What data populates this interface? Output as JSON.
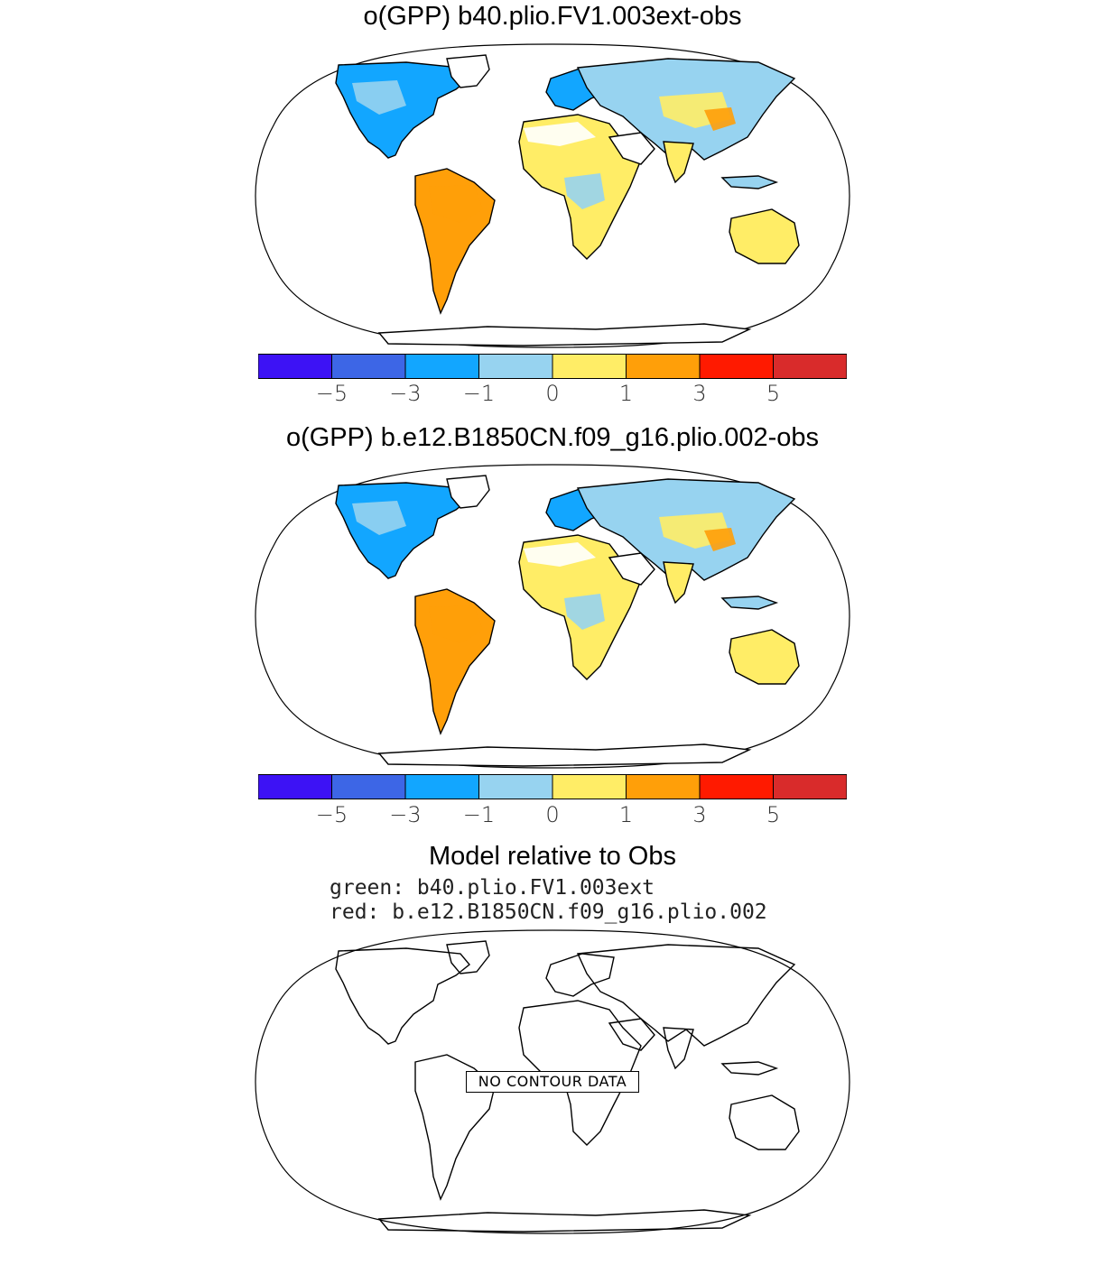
{
  "panels": [
    {
      "title": "o(GPP) b40.plio.FV1.003ext-obs"
    },
    {
      "title": "o(GPP) b.e12.B1850CN.f09_g16.plio.002-obs"
    }
  ],
  "colorbar": {
    "colors": [
      "#3d12f5",
      "#3d66e6",
      "#12a6ff",
      "#97d3f0",
      "#ffed66",
      "#ff9f09",
      "#ff1a00",
      "#d92b2b"
    ],
    "labels": [
      "−5",
      "−3",
      "−1",
      "0",
      "1",
      "3",
      "5"
    ]
  },
  "panel3": {
    "title": "Model relative to Obs",
    "legend_green": "green: b40.plio.FV1.003ext",
    "legend_red": "red: b.e12.B1850CN.f09_g16.plio.002",
    "no_data_label": "NO CONTOUR DATA"
  }
}
